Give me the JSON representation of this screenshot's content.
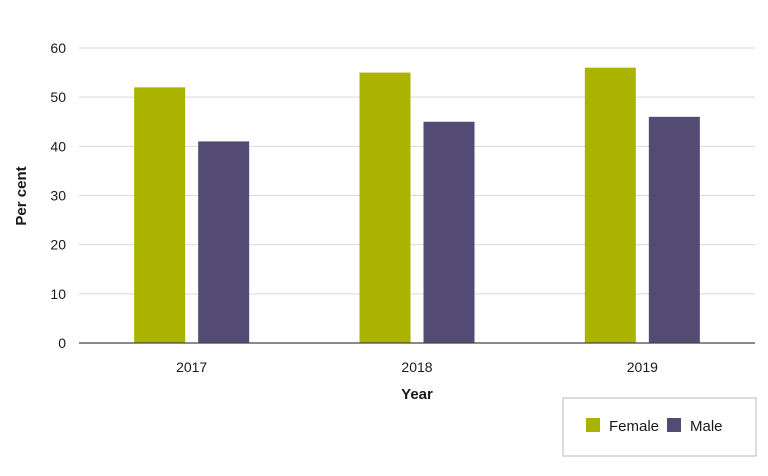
{
  "chart_data": {
    "type": "bar",
    "categories": [
      "2017",
      "2018",
      "2019"
    ],
    "series": [
      {
        "name": "Female",
        "color": "#aab300",
        "values": [
          52,
          55,
          56
        ]
      },
      {
        "name": "Male",
        "color": "#534b74",
        "values": [
          41,
          45,
          46
        ]
      }
    ],
    "xlabel": "Year",
    "ylabel": "Per cent",
    "ylim": [
      0,
      60
    ],
    "yticks": [
      0,
      10,
      20,
      30,
      40,
      50,
      60
    ],
    "grid": true,
    "legend_position": "bottom-right"
  }
}
